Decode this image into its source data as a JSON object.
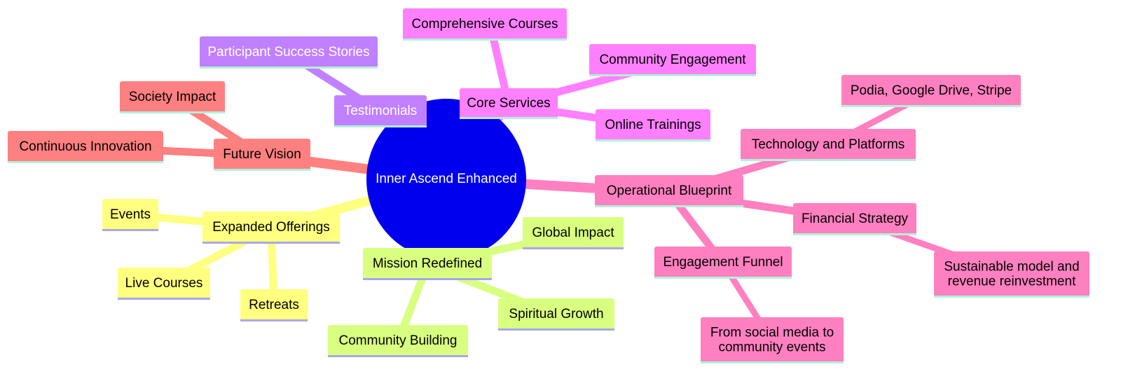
{
  "colors": {
    "background": "#ffffff",
    "root": "#0000ee",
    "root_text": "#ffffff",
    "core_services": "#ff80ff",
    "testimonials": "#c080ff",
    "future_vision": "#ff8080",
    "expanded_offerings": "#ffff80",
    "mission_redefined": "#d9ff80",
    "operational_blueprint": "#ff80c0",
    "node_text": "#000000",
    "node_text_light": "#ffffff"
  },
  "mindmap": {
    "root": {
      "label": "Inner Ascend Enhanced"
    },
    "branches": {
      "core_services": {
        "label": "Core Services",
        "children": [
          "Comprehensive Courses",
          "Community Engagement",
          "Online Trainings"
        ]
      },
      "testimonials": {
        "label": "Testimonials",
        "children": [
          "Participant Success Stories"
        ]
      },
      "future_vision": {
        "label": "Future Vision",
        "children": [
          "Society Impact",
          "Continuous Innovation"
        ]
      },
      "expanded_offerings": {
        "label": "Expanded Offerings",
        "children": [
          "Events",
          "Live Courses",
          "Retreats"
        ]
      },
      "mission_redefined": {
        "label": "Mission Redefined",
        "children": [
          "Global Impact",
          "Spiritual Growth",
          "Community Building"
        ]
      },
      "operational_blueprint": {
        "label": "Operational Blueprint",
        "children": {
          "technology": {
            "label": "Technology and Platforms",
            "children": [
              "Podia, Google Drive, Stripe"
            ]
          },
          "financial": {
            "label": "Financial Strategy",
            "children": [
              [
                "Sustainable model and",
                "revenue reinvestment"
              ]
            ]
          },
          "engagement": {
            "label": "Engagement Funnel",
            "children": [
              [
                "From social media to",
                "community events"
              ]
            ]
          }
        }
      }
    }
  }
}
